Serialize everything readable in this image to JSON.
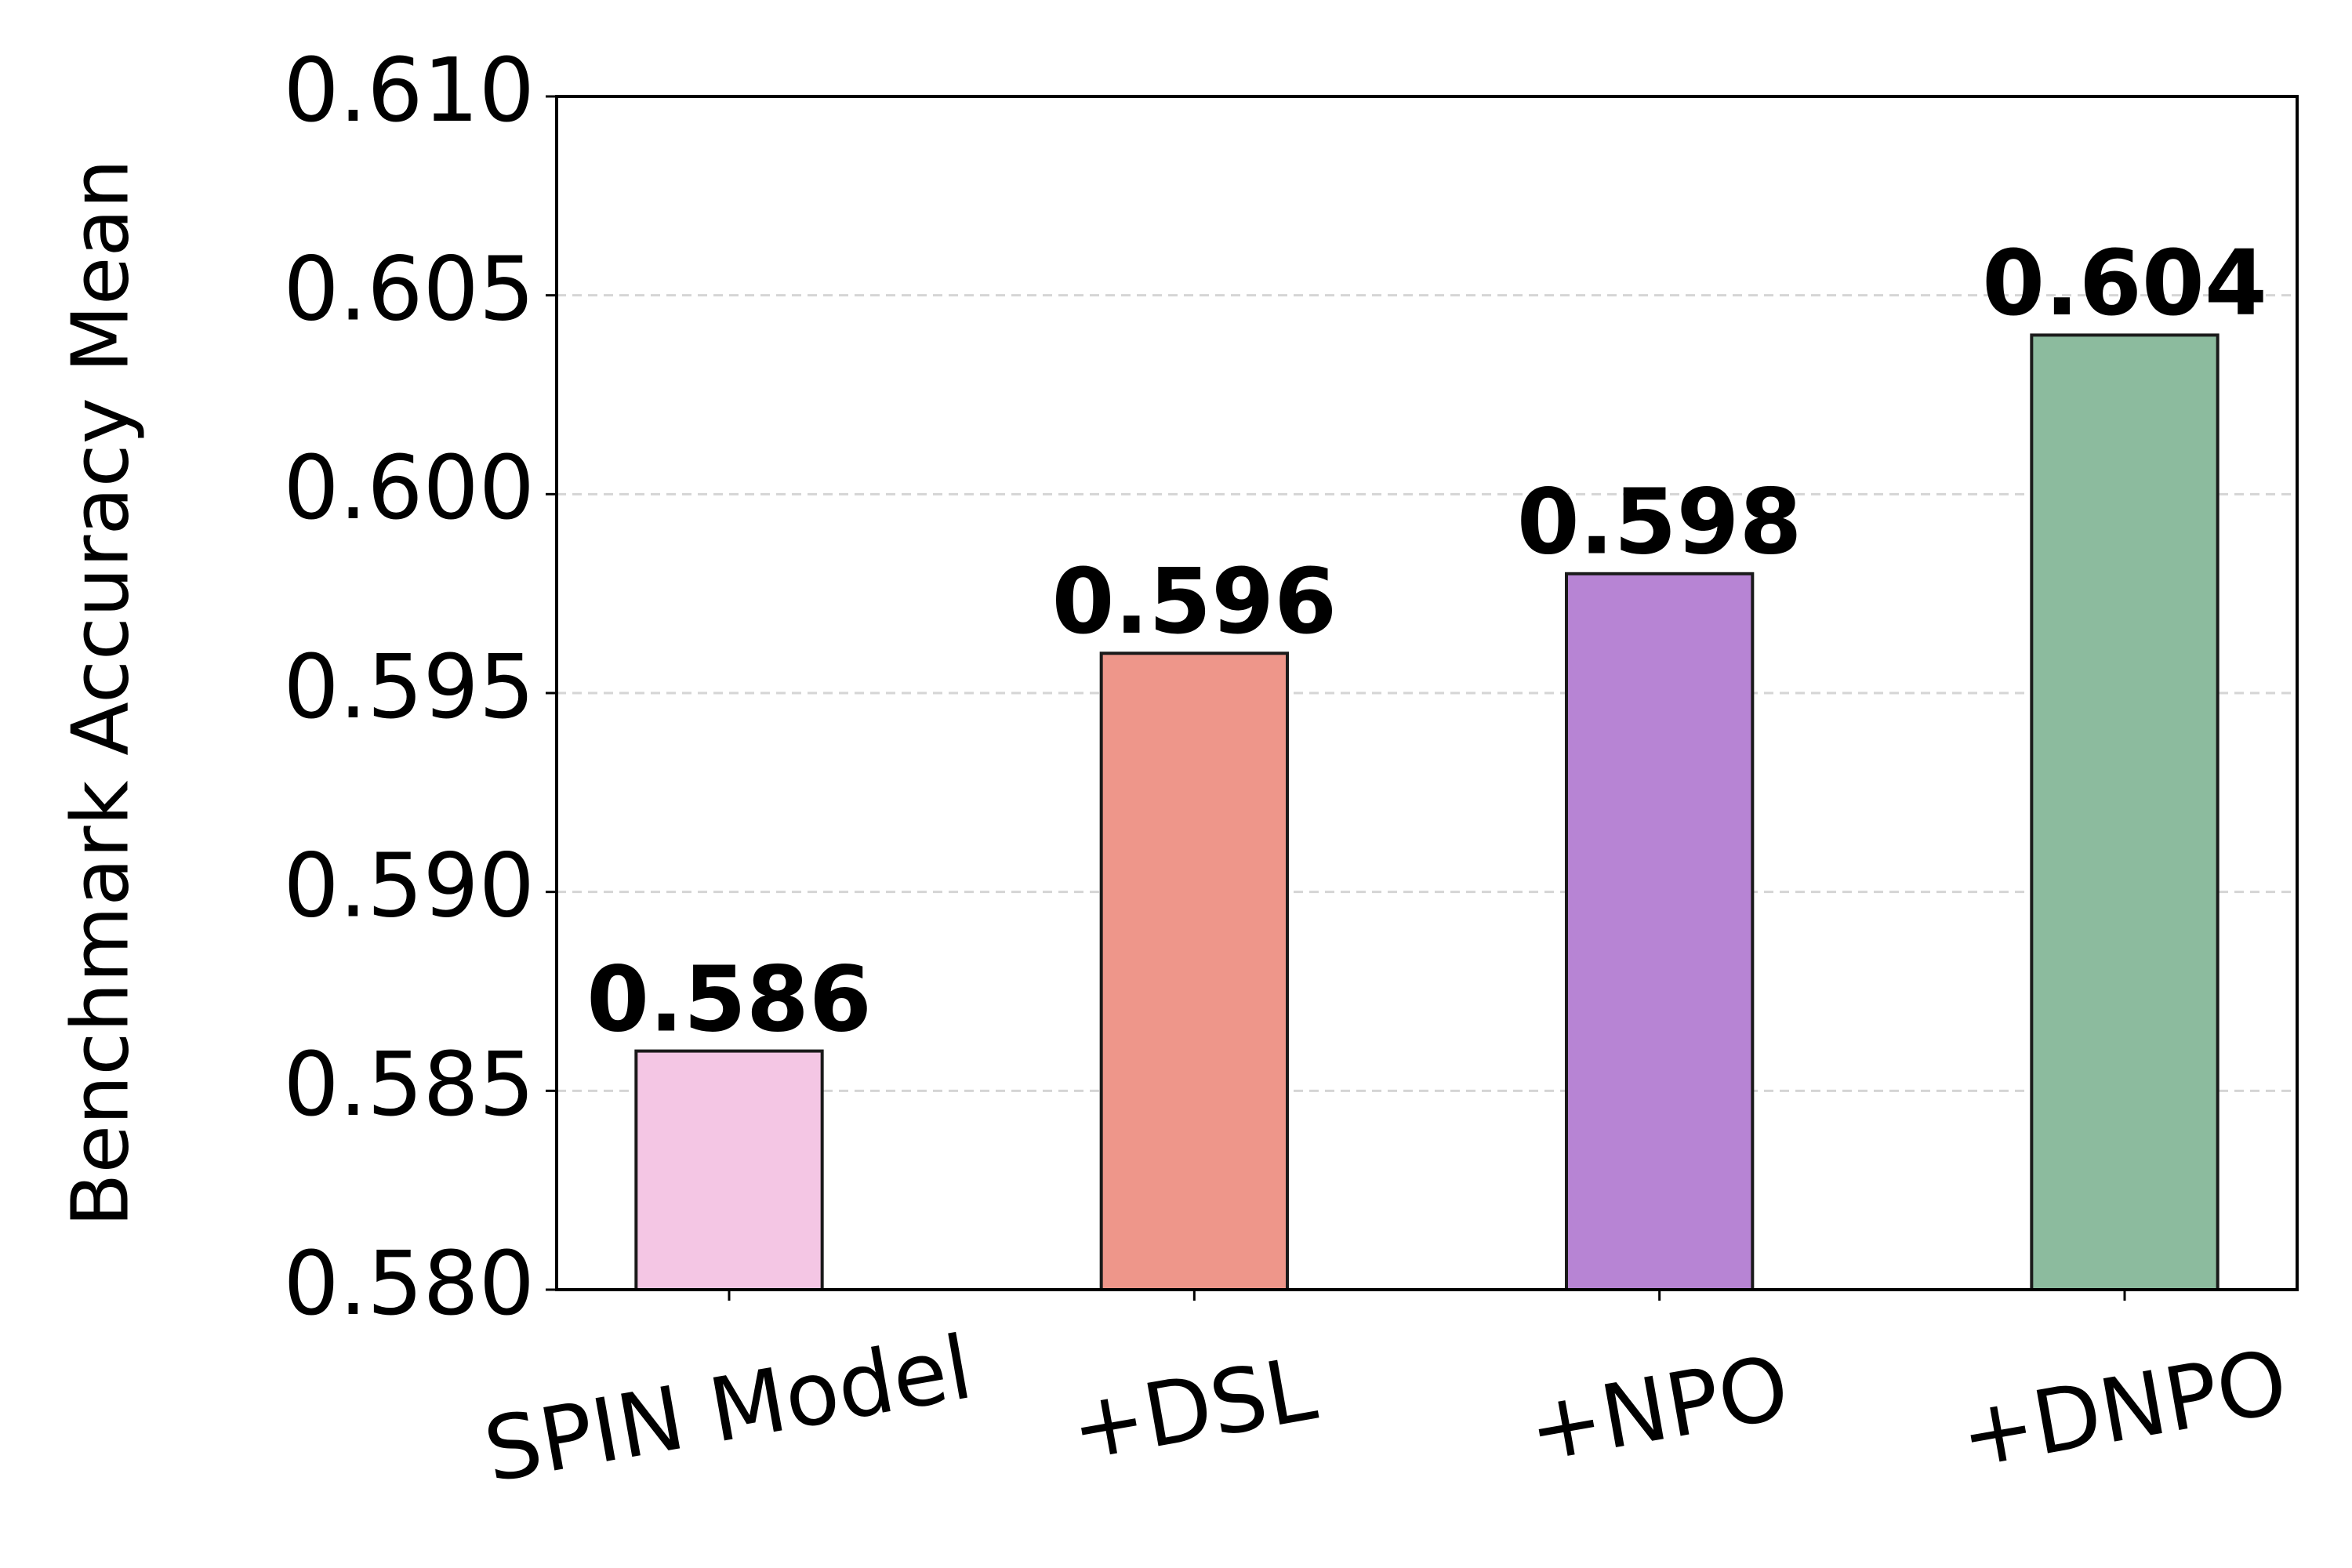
{
  "chart_data": {
    "type": "bar",
    "y_label": "Benchmark Accuracy Mean",
    "categories": [
      "SPIN Model",
      "+DSL",
      "+NPO",
      "+DNPO"
    ],
    "values": [
      0.586,
      0.596,
      0.598,
      0.604
    ],
    "colors": [
      "#f4c6e4",
      "#ee968a",
      "#b784d4",
      "#8cbb9e"
    ],
    "ylim": [
      0.58,
      0.61
    ],
    "yticks": [
      {
        "value": 0.58,
        "label": "0.580"
      },
      {
        "value": 0.585,
        "label": "0.585"
      },
      {
        "value": 0.59,
        "label": "0.590"
      },
      {
        "value": 0.595,
        "label": "0.595"
      },
      {
        "value": 0.6,
        "label": "0.600"
      },
      {
        "value": 0.605,
        "label": "0.605"
      },
      {
        "value": 0.61,
        "label": "0.610"
      }
    ],
    "grid": true
  }
}
